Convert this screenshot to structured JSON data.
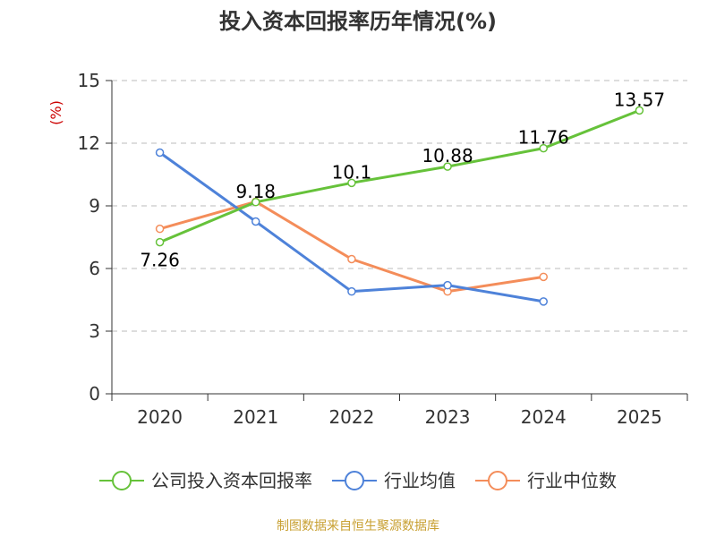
{
  "chart_data": {
    "type": "line",
    "title": "投入资本回报率历年情况(%)",
    "ylabel": "(%)",
    "xlabel": "",
    "categories": [
      "2020",
      "2021",
      "2022",
      "2023",
      "2024",
      "2025"
    ],
    "ylim": [
      0,
      15
    ],
    "yticks": [
      0,
      3,
      6,
      9,
      12,
      15
    ],
    "grid": true,
    "legend_position": "bottom",
    "series": [
      {
        "name": "公司投入资本回报率",
        "color": "#66c23a",
        "values": [
          7.26,
          9.18,
          10.1,
          10.88,
          11.76,
          13.57
        ],
        "labels": [
          "7.26",
          "9.18",
          "10.1",
          "10.88",
          "11.76",
          "13.57"
        ],
        "show_labels": true
      },
      {
        "name": "行业均值",
        "color": "#4e82d9",
        "values": [
          11.55,
          8.25,
          4.9,
          5.2,
          4.42,
          null
        ],
        "show_labels": false
      },
      {
        "name": "行业中位数",
        "color": "#f48d5a",
        "values": [
          7.9,
          9.2,
          6.45,
          4.9,
          5.6,
          null
        ],
        "show_labels": false
      }
    ]
  },
  "footer": {
    "source": "制图数据来自恒生聚源数据库"
  },
  "colors": {
    "axis": "#333333",
    "grid": "#bbbbbb",
    "ylabel": "#cc0000",
    "source": "#c8a032"
  }
}
